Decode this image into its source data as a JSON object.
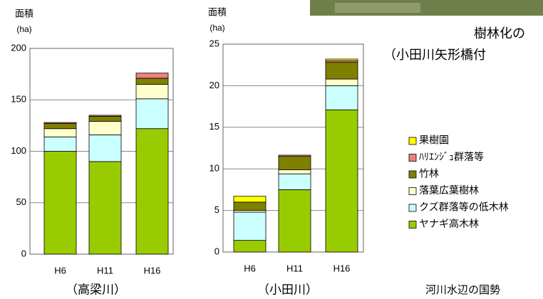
{
  "chart_data": [
    {
      "type": "bar",
      "stacked": true,
      "y_label": "面積",
      "y_unit": "(ha)",
      "x_label": "（高梁川）",
      "categories": [
        "H6",
        "H11",
        "H16"
      ],
      "ylim": [
        0,
        200
      ],
      "yticks": [
        0,
        50,
        100,
        150,
        200
      ],
      "grid": true,
      "series": [
        {
          "name": "ヤナギ高木林",
          "color": "#99cc00",
          "values": [
            100,
            90,
            122
          ]
        },
        {
          "name": "クズ群落等の低木林",
          "color": "#ccffff",
          "values": [
            14,
            26,
            29
          ]
        },
        {
          "name": "落葉広葉樹林",
          "color": "#ffffcc",
          "values": [
            8,
            13,
            14
          ]
        },
        {
          "name": "竹林",
          "color": "#808000",
          "values": [
            5,
            5,
            6
          ]
        },
        {
          "name": "ﾊﾘｴﾝｼﾞｭ群落等",
          "color": "#f08080",
          "values": [
            1,
            1,
            5
          ]
        },
        {
          "name": "果樹園",
          "color": "#ffff00",
          "values": [
            0,
            0,
            0
          ]
        }
      ]
    },
    {
      "type": "bar",
      "stacked": true,
      "y_label": "面積",
      "y_unit": "(ha)",
      "x_label": "（小田川）",
      "categories": [
        "H6",
        "H11",
        "H16"
      ],
      "ylim": [
        0,
        25
      ],
      "yticks": [
        0,
        5,
        10,
        15,
        20,
        25
      ],
      "grid": true,
      "series": [
        {
          "values": [
            1.4,
            7.5,
            17.1
          ]
        },
        {
          "values": [
            3.4,
            1.9,
            2.9
          ]
        },
        {
          "values": [
            0.2,
            0.5,
            0.8
          ]
        },
        {
          "values": [
            1.0,
            1.6,
            2.0
          ]
        },
        {
          "values": [
            0,
            0.15,
            0.2
          ]
        },
        {
          "values": [
            0.7,
            0,
            0.2
          ]
        }
      ]
    }
  ],
  "photo_caption": [
    "樹林化の",
    "（小田川矢形橋付"
  ],
  "footer": "河川水辺の国勢"
}
